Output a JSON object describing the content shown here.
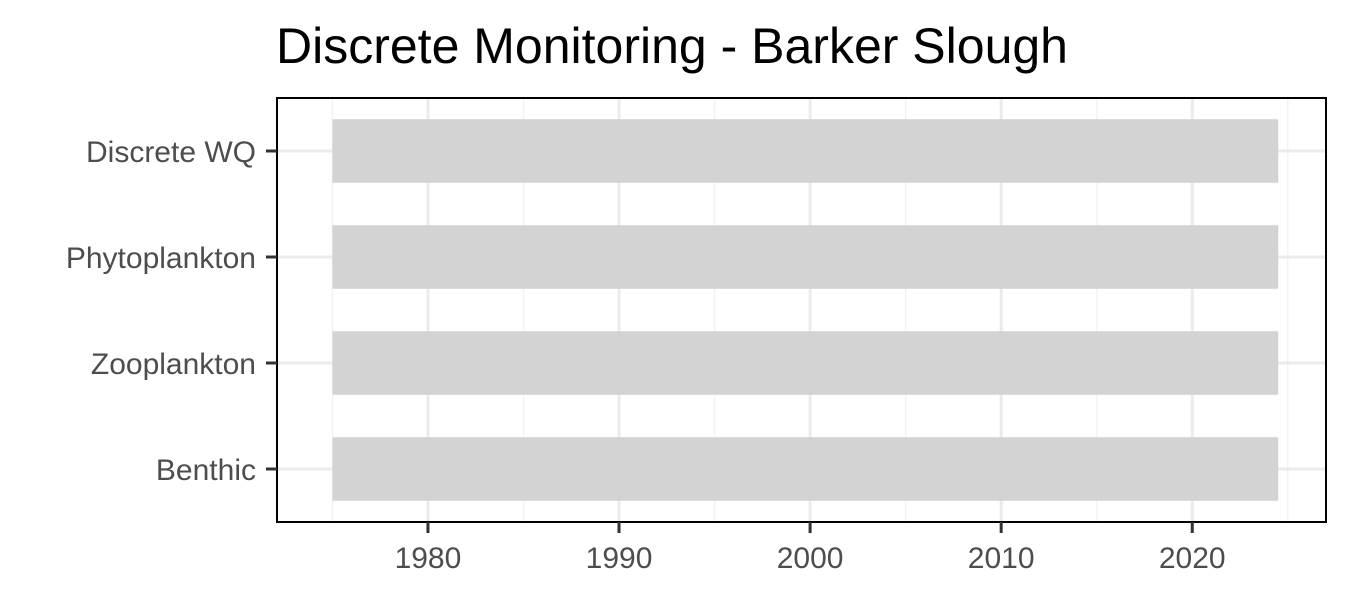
{
  "chart_data": {
    "type": "bar",
    "orientation": "horizontal",
    "title": "Discrete Monitoring - Barker Slough",
    "xlabel": "",
    "ylabel": "",
    "categories": [
      "Discrete WQ",
      "Phytoplankton",
      "Zooplankton",
      "Benthic"
    ],
    "ranges": [
      {
        "category": "Discrete WQ",
        "start": 1975,
        "end": 2024.5
      },
      {
        "category": "Phytoplankton",
        "start": 1975,
        "end": 2024.5
      },
      {
        "category": "Zooplankton",
        "start": 1975,
        "end": 2024.5
      },
      {
        "category": "Benthic",
        "start": 1975,
        "end": 2024.5
      }
    ],
    "xlim": [
      1972.1,
      2027.0
    ],
    "x_ticks": [
      1980,
      1990,
      2000,
      2010,
      2020
    ],
    "x_tick_labels": [
      "1980",
      "1990",
      "2000",
      "2010",
      "2020"
    ],
    "grid": true,
    "legend": "none",
    "colors": {
      "bar": "#d3d3d3",
      "grid_major": "#ebebeb",
      "grid_minor": "#f3f3f3",
      "border": "#000000",
      "axis_text": "#4d4d4d",
      "tick": "#333333"
    }
  }
}
